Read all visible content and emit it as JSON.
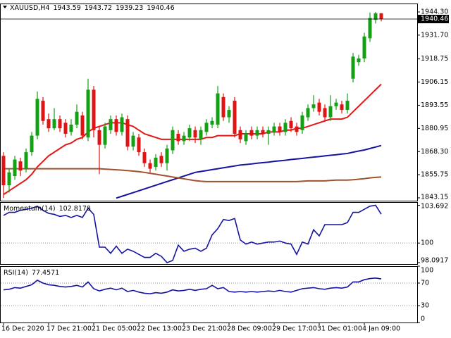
{
  "chart_data": [
    {
      "type": "candlestick",
      "title": "XAUUSD,H4",
      "header_values": [
        1943.59,
        1943.72,
        1939.23,
        1940.46
      ],
      "categories": [
        "16 Dec 2020",
        null,
        null,
        null,
        null,
        null,
        null,
        null,
        "17 Dec 21:00",
        null,
        null,
        null,
        null,
        null,
        null,
        null,
        "21 Dec 05:00",
        null,
        null,
        null,
        null,
        null,
        null,
        null,
        "22 Dec 13:00",
        null,
        null,
        null,
        null,
        null,
        null,
        null,
        "23 Dec 21:00",
        null,
        null,
        null,
        null,
        null,
        null,
        null,
        "28 Dec 09:00",
        null,
        null,
        null,
        null,
        null,
        null,
        null,
        "29 Dec 17:00",
        null,
        null,
        null,
        null,
        null,
        null,
        null,
        "31 Dec 01:00",
        null,
        null,
        null,
        null,
        null,
        null,
        null,
        "4 Jan 09:00",
        null,
        null,
        null
      ],
      "open": [
        1866,
        1850,
        1855,
        1863,
        1859,
        1868,
        1877,
        1896,
        1886,
        1881,
        1886,
        1884,
        1879,
        1883,
        1888,
        1876,
        1902,
        1880,
        1872,
        1880,
        1886,
        1879,
        1886,
        1871,
        1876,
        1868,
        1862,
        1860,
        1866,
        1862,
        1869,
        1878,
        1874,
        1876,
        1880,
        1875,
        1879,
        1883,
        1883,
        1898,
        1887,
        1896,
        1880,
        1874,
        1880,
        1877,
        1880,
        1878,
        1879,
        1882,
        1879,
        1885,
        1882,
        1880,
        1887,
        1892,
        1895,
        1892,
        1887,
        1893,
        1894,
        1891,
        1908,
        1917,
        1919,
        1930,
        1940,
        1943.59
      ],
      "high": [
        1868,
        1859,
        1866,
        1865,
        1870,
        1879,
        1901,
        1898,
        1889,
        1892,
        1888,
        1886,
        1886,
        1894,
        1890,
        1908,
        1904,
        1882,
        1884,
        1888,
        1888,
        1889,
        1888,
        1879,
        1878,
        1870,
        1864,
        1867,
        1868,
        1872,
        1882,
        1880,
        1879,
        1883,
        1882,
        1882,
        1886,
        1887,
        1904,
        1900,
        1893,
        1898,
        1882,
        1880,
        1882,
        1882,
        1882,
        1882,
        1884,
        1884,
        1886,
        1887,
        1884,
        1890,
        1894,
        1899,
        1897,
        1894,
        1899,
        1897,
        1896,
        1900,
        1922,
        1921,
        1933,
        1944,
        1944.3,
        1943.72
      ],
      "low": [
        1843,
        1846,
        1853,
        1855,
        1857,
        1866,
        1875,
        1883,
        1879,
        1880,
        1879,
        1876,
        1877,
        1881,
        1875,
        1874,
        1876,
        1856,
        1870,
        1878,
        1877,
        1877,
        1869,
        1869,
        1866,
        1860,
        1857,
        1858,
        1860,
        1858,
        1867,
        1872,
        1872,
        1874,
        1873,
        1872,
        1877,
        1881,
        1881,
        1885,
        1884,
        1876,
        1873,
        1872,
        1875,
        1875,
        1876,
        1872,
        1877,
        1877,
        1877,
        1879,
        1877,
        1878,
        1885,
        1890,
        1888,
        1885,
        1885,
        1891,
        1889,
        1889,
        1906,
        1915,
        1917,
        1928,
        1938,
        1939.23
      ],
      "close": [
        1850,
        1857,
        1864,
        1858,
        1868,
        1877,
        1897,
        1885,
        1881,
        1886,
        1881,
        1878,
        1883,
        1890,
        1877,
        1902,
        1880,
        1872,
        1882,
        1886,
        1879,
        1887,
        1871,
        1877,
        1868,
        1862,
        1859,
        1865,
        1862,
        1870,
        1880,
        1874,
        1877,
        1881,
        1876,
        1880,
        1884,
        1885,
        1900,
        1887,
        1891,
        1878,
        1875,
        1878,
        1877,
        1880,
        1878,
        1880,
        1882,
        1879,
        1884,
        1881,
        1879,
        1888,
        1892,
        1894,
        1890,
        1887,
        1893,
        1895,
        1891,
        1896,
        1920,
        1919,
        1931,
        1941,
        1943.59,
        1940.46
      ],
      "colors": {
        "up": "#14a014",
        "down": "#e01414"
      },
      "series": [
        {
          "color": "#e01818",
          "values": [
            1845,
            1847,
            1849,
            1851,
            1853,
            1856,
            1860,
            1863,
            1866,
            1868,
            1870,
            1872,
            1873,
            1875,
            1876,
            1879,
            1881,
            1882,
            1883,
            1884,
            1884,
            1884,
            1883,
            1882,
            1880,
            1878,
            1877,
            1876,
            1875,
            1875,
            1875,
            1875,
            1875,
            1875,
            1875,
            1875,
            1876,
            1876,
            1877,
            1877,
            1877,
            1877,
            1878,
            1878,
            1878,
            1878,
            1878,
            1879,
            1879,
            1879,
            1880,
            1880,
            1881,
            1881,
            1882,
            1883,
            1884,
            1885,
            1886,
            1886,
            1886,
            1887,
            1890,
            1893,
            1896,
            1899,
            1902,
            1905
          ]
        },
        {
          "color": "#1414a0",
          "values": [
            null,
            null,
            null,
            null,
            null,
            null,
            null,
            null,
            null,
            null,
            null,
            null,
            null,
            null,
            null,
            null,
            null,
            null,
            null,
            null,
            1843,
            1844,
            1845,
            1846,
            1847,
            1848,
            1849,
            1850,
            1851,
            1852,
            1853,
            1854,
            1855,
            1856,
            1857,
            1857.5,
            1858,
            1858.5,
            1859,
            1859.5,
            1860,
            1860.5,
            1861,
            1861.3,
            1861.6,
            1862,
            1862.3,
            1862.6,
            1863,
            1863.3,
            1863.6,
            1864,
            1864.3,
            1864.6,
            1865,
            1865.3,
            1865.6,
            1866,
            1866.3,
            1866.6,
            1867,
            1867.3,
            1868,
            1868.6,
            1869.2,
            1870,
            1870.8,
            1871.6
          ]
        },
        {
          "color": "#a0522d",
          "values": [
            1859,
            1859,
            1859,
            1859,
            1859,
            1859,
            1859,
            1859,
            1859,
            1859,
            1859,
            1859,
            1859,
            1859,
            1859,
            1859,
            1859,
            1859,
            1858.8,
            1858.6,
            1858.4,
            1858.2,
            1858,
            1857.7,
            1857.4,
            1857,
            1856.5,
            1856,
            1855.5,
            1855,
            1854.5,
            1854,
            1853.5,
            1853,
            1852.5,
            1852.2,
            1852,
            1852,
            1852,
            1852,
            1852,
            1852,
            1852,
            1852,
            1852,
            1852,
            1852,
            1852,
            1852,
            1852,
            1852,
            1852,
            1852,
            1852.2,
            1852.4,
            1852.4,
            1852.4,
            1852.4,
            1852.6,
            1852.8,
            1852.8,
            1852.8,
            1853,
            1853.3,
            1853.6,
            1854,
            1854.3,
            1854.5
          ]
        }
      ],
      "ylim": [
        1841.6,
        1948.9
      ],
      "yticks": [
        {
          "value": 1944.3,
          "label": "1944.30"
        },
        {
          "value": 1931.7,
          "label": "1931.70"
        },
        1918.75,
        1906.15,
        1893.55,
        1880.95,
        {
          "value": 1868.3,
          "label": "1868.30"
        },
        1855.75,
        1843.15
      ]
    },
    {
      "type": "line",
      "title": "Momentum(14)",
      "current": 102.8178,
      "series": [
        {
          "color": "#1414a0",
          "values": [
            102.7,
            103.0,
            103.0,
            103.2,
            103.3,
            103.4,
            103.6,
            103.2,
            102.9,
            102.8,
            102.6,
            102.7,
            102.5,
            102.7,
            102.5,
            103.4,
            102.8,
            99.6,
            99.6,
            99.0,
            99.7,
            99.0,
            99.4,
            99.2,
            98.9,
            98.6,
            98.6,
            99.0,
            98.7,
            98.0917,
            98.3,
            99.8,
            99.2,
            99.4,
            99.5,
            99.2,
            99.5,
            100.8,
            101.4,
            102.3,
            102.2,
            102.4,
            100.3,
            99.9,
            100.1,
            99.9,
            100.0,
            100.1,
            100.1,
            100.2,
            100.0,
            99.9,
            98.9,
            100.1,
            99.9,
            101.3,
            100.7,
            101.8,
            101.8,
            101.8,
            101.8,
            102.0,
            103.0,
            103.0,
            103.3,
            103.6,
            103.692,
            102.8178
          ]
        }
      ],
      "ylim": [
        97.95,
        104.0
      ],
      "yticks": [
        103.692,
        100,
        98.0917
      ],
      "levels": [
        100
      ]
    },
    {
      "type": "line",
      "title": "RSI(14)",
      "current": 77.4571,
      "series": [
        {
          "color": "#1414a0",
          "values": [
            58,
            59,
            62,
            61,
            64,
            67,
            75,
            70,
            67,
            66,
            64,
            63,
            64,
            66,
            63,
            72,
            60,
            56,
            59,
            61,
            58,
            61,
            55,
            57,
            54,
            52,
            51,
            53,
            52,
            54,
            58,
            56,
            57,
            59,
            57,
            59,
            60,
            66,
            60,
            62,
            55,
            54,
            55,
            54,
            55,
            54,
            55,
            56,
            55,
            57,
            55,
            54,
            57,
            60,
            61,
            62,
            60,
            59,
            61,
            62,
            61,
            63,
            72,
            72,
            76,
            78,
            79,
            77.4571
          ]
        }
      ],
      "ylim": [
        0,
        100
      ],
      "yticks": [
        100,
        70,
        30,
        0
      ],
      "levels": [
        70,
        30
      ]
    }
  ]
}
